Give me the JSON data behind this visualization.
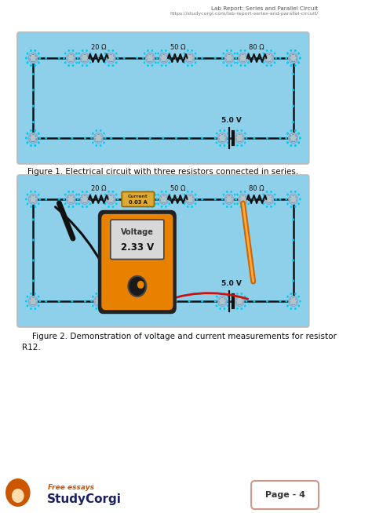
{
  "title_line1": "Lab Report: Series and Parallel Circuit",
  "title_line2": "https://studycorgi.com/lab-report-series-and-parallel-circuit/",
  "fig1_caption": "Figure 1. Electrical circuit with three resistors connected in series.",
  "fig2_caption_line1": "    Figure 2. Demonstration of voltage and current measurements for resistor",
  "fig2_caption_line2": "R12.",
  "figure_bg": "#8ecfea",
  "page_bg": "#ffffff",
  "resistor_labels": [
    "20 Ω",
    "50 Ω",
    "80 Ω"
  ],
  "battery_label": "5.0 V",
  "current_box_label1": "Current",
  "current_box_label2": "0.03 A",
  "voltage_label1": "Voltage",
  "voltage_label2": "2.33 V",
  "page_number": "Page - 4",
  "footer_small": "Free essays",
  "footer_brand": "StudyCorgi",
  "wire_color": "#111111",
  "node_face": "#b8ccd8",
  "node_edge": "#4499bb",
  "node_dot_color": "#55aacc",
  "mm_orange": "#e88000",
  "mm_dark": "#222222",
  "footer_orange": "#cc5500",
  "footer_navy": "#1a2060"
}
